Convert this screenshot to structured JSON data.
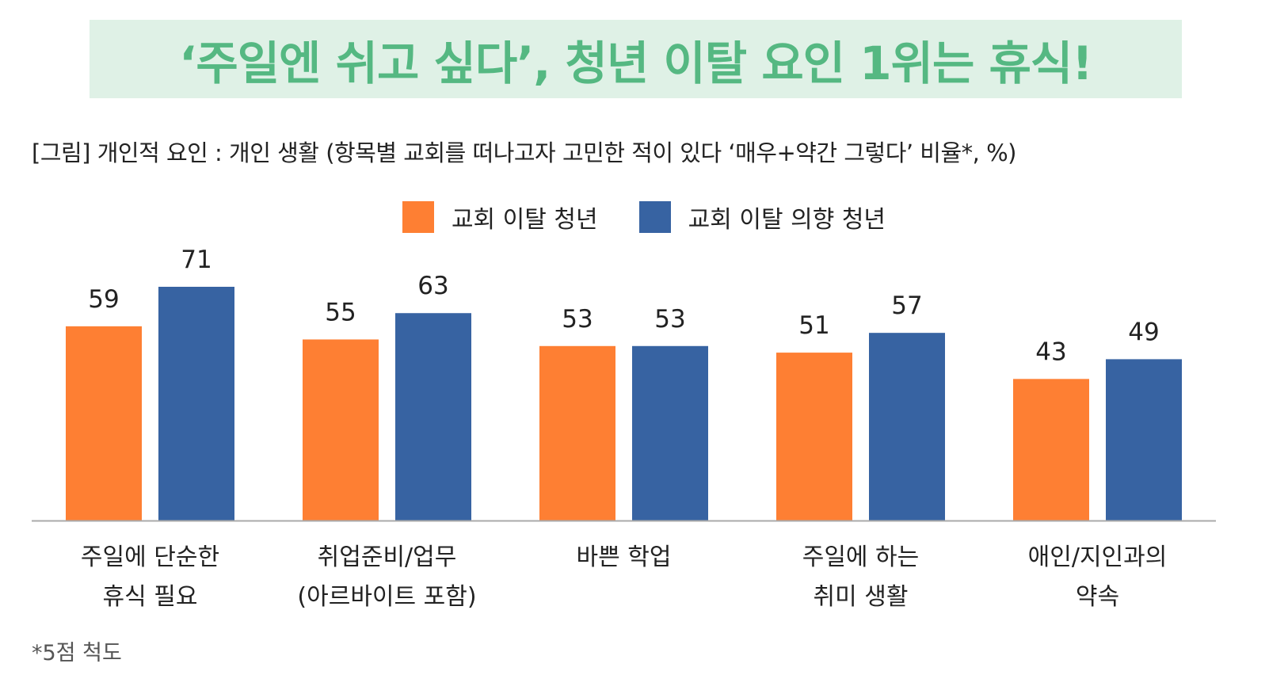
{
  "title": "‘주일엔 쉬고 싶다’, 청년 이탈 요인 1위는 휴식!",
  "subtitle": "[그림] 개인적 요인 : 개인 생활 (항목별 교회를 떠나고자 고민한 적이 있다 ‘매우+약간 그렇다’ 비율*, %)",
  "footnote": "*5점 척도",
  "colors": {
    "title": "#55b882",
    "banner": "#dff1e6",
    "series1": "#fe7f33",
    "series2": "#3763a2"
  },
  "chart_data": {
    "type": "bar",
    "title": "개인적 요인 : 개인 생활",
    "xlabel": "",
    "ylabel": "%",
    "ylim": [
      0,
      80
    ],
    "grid": false,
    "legend_position": "top-center",
    "categories": [
      [
        "주일에 단순한",
        "휴식 필요"
      ],
      [
        "취업준비/업무",
        "(아르바이트 포함)"
      ],
      [
        "바쁜 학업"
      ],
      [
        "주일에 하는",
        "취미 생활"
      ],
      [
        "애인/지인과의",
        "약속"
      ]
    ],
    "series": [
      {
        "name": "교회 이탈 청년",
        "color": "#fe7f33",
        "values": [
          59,
          55,
          53,
          51,
          43
        ]
      },
      {
        "name": "교회 이탈 의향 청년",
        "color": "#3763a2",
        "values": [
          71,
          63,
          53,
          57,
          49
        ]
      }
    ]
  }
}
